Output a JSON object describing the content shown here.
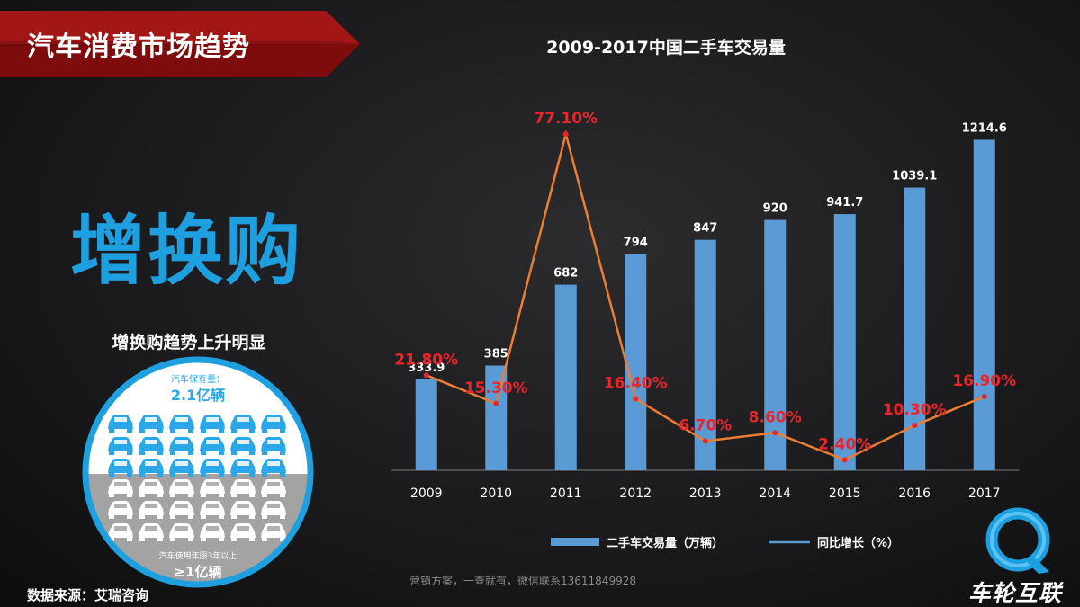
{
  "banner": {
    "title": "汽车消费市场趋势",
    "color": "#9b1111"
  },
  "headline": "增换购",
  "subhead": "增换购趋势上升明显",
  "infographic": {
    "top_label": "汽车保有量：",
    "top_value": "2.1亿辆",
    "bottom_label": "汽车使用年限3年以上",
    "bottom_value": "≥1亿辆",
    "ring_color": "#1e9fe0",
    "top_fill": "#ffffff",
    "top_car_color": "#2aa7e8",
    "bottom_fill": "#a3a3a3",
    "bottom_car_color": "#ffffff"
  },
  "source": "数据来源：艾瑞咨询",
  "watermark": "营销方案，一查就有，微信联系13611849928",
  "logo": {
    "text": "车轮互联",
    "icon": "q-ring-logo-icon",
    "color": "#1e9fe0"
  },
  "chart_data": {
    "type": "bar",
    "title": "2009-2017中国二手车交易量",
    "categories": [
      "2009",
      "2010",
      "2011",
      "2012",
      "2013",
      "2014",
      "2015",
      "2016",
      "2017"
    ],
    "series": [
      {
        "name": "二手车交易量（万辆）",
        "type": "bar",
        "color": "#5b9bd5",
        "values": [
          333.9,
          385,
          682,
          794,
          847,
          920,
          941.7,
          1039.1,
          1214.6
        ],
        "labels": [
          "333.9",
          "385",
          "682",
          "794",
          "847",
          "920",
          "941.7",
          "1039.1",
          "1214.6"
        ]
      },
      {
        "name": "同比增长（%）",
        "type": "line",
        "color": "#ed7d31",
        "label_color": "#e8262b",
        "values": [
          21.8,
          15.3,
          77.1,
          16.4,
          6.7,
          8.6,
          2.4,
          10.3,
          16.9
        ],
        "labels": [
          "21.80%",
          "15.30%",
          "77.10%",
          "16.40%",
          "6.70%",
          "8.60%",
          "2.40%",
          "10.30%",
          "16.90%"
        ]
      }
    ],
    "legend_position": "bottom",
    "grid": false
  }
}
